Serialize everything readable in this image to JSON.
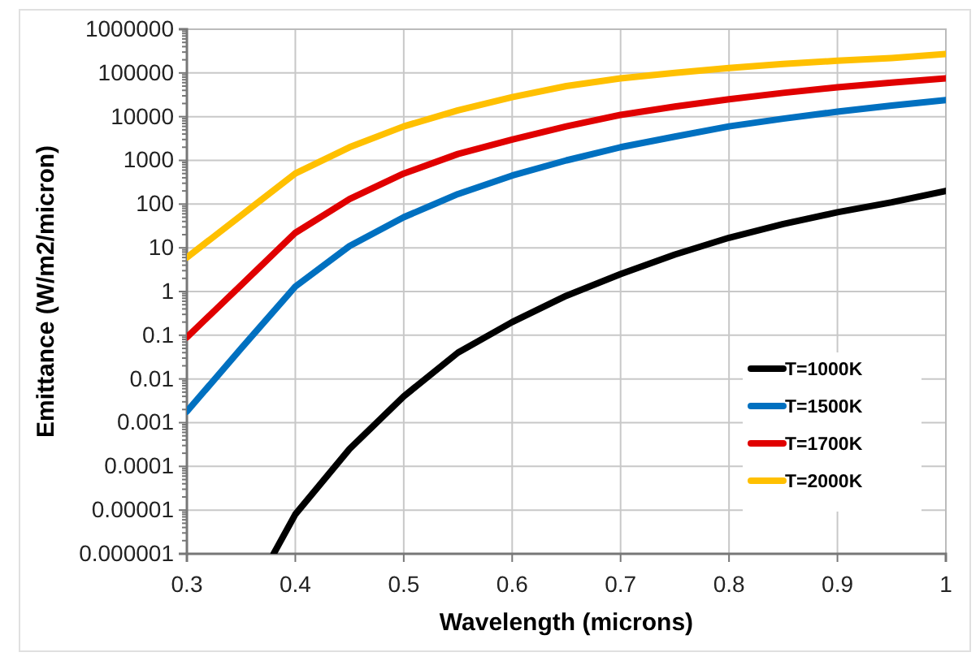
{
  "chart_data": {
    "type": "line",
    "xlabel": "Wavelength (microns)",
    "ylabel": "Emittance (W/m2/micron)",
    "log": "y",
    "grid": true,
    "legend": "bottom right",
    "marker": "none",
    "line_style": "solid",
    "xlim": [
      0.3,
      1
    ],
    "xticks": [
      0.3,
      0.4,
      0.5,
      0.6,
      0.7,
      0.8,
      0.9,
      1
    ],
    "ylim": [
      1e-06,
      1000000
    ],
    "yticks": [
      {
        "value": 1e-06,
        "label": "0.000001"
      },
      {
        "value": 1e-05,
        "label": "0.00001"
      },
      0.0001,
      0.001,
      0.01,
      0.1,
      1,
      10,
      100,
      1000,
      10000,
      100000,
      1000000
    ],
    "series": [
      {
        "name": "T=1000K",
        "color": "#000000",
        "x": [
          0.38,
          0.4,
          0.45,
          0.5,
          0.55,
          0.6,
          0.65,
          0.7,
          0.75,
          0.8,
          0.85,
          0.9,
          0.95,
          1
        ],
        "values": [
          1e-06,
          8e-06,
          0.00025,
          0.004,
          0.04,
          0.2,
          0.8,
          2.5,
          7,
          17,
          35,
          65,
          110,
          200
        ]
      },
      {
        "name": "T=1500K",
        "color": "#0070c0",
        "x": [
          0.3,
          0.35,
          0.4,
          0.45,
          0.5,
          0.55,
          0.6,
          0.65,
          0.7,
          0.75,
          0.8,
          0.85,
          0.9,
          0.95,
          1
        ],
        "values": [
          0.0018,
          0.05,
          1.3,
          11,
          50,
          170,
          450,
          1000,
          2000,
          3500,
          6000,
          9000,
          13000,
          18000,
          24000
        ]
      },
      {
        "name": "T=1700K",
        "color": "#e00000",
        "x": [
          0.3,
          0.35,
          0.4,
          0.45,
          0.5,
          0.55,
          0.6,
          0.65,
          0.7,
          0.75,
          0.8,
          0.85,
          0.9,
          0.95,
          1
        ],
        "values": [
          0.09,
          1.4,
          22,
          130,
          500,
          1400,
          3000,
          6000,
          11000,
          17000,
          25000,
          35000,
          47000,
          60000,
          75000
        ]
      },
      {
        "name": "T=2000K",
        "color": "#ffc000",
        "x": [
          0.3,
          0.35,
          0.4,
          0.45,
          0.5,
          0.55,
          0.6,
          0.65,
          0.7,
          0.75,
          0.8,
          0.85,
          0.9,
          0.95,
          1
        ],
        "values": [
          6,
          55,
          500,
          2000,
          6000,
          14000,
          28000,
          50000,
          75000,
          100000,
          130000,
          160000,
          190000,
          220000,
          270000
        ]
      }
    ]
  }
}
